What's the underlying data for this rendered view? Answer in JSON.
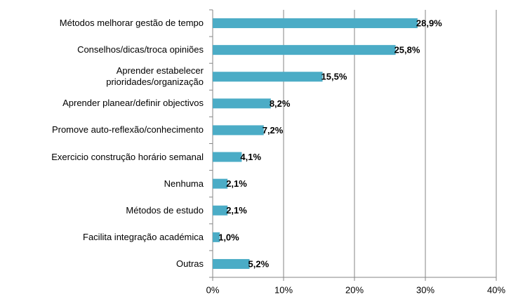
{
  "chart_data": {
    "type": "bar",
    "orientation": "horizontal",
    "categories": [
      "Métodos melhorar gestão de tempo",
      "Conselhos/dicas/troca opiniões",
      "Aprender estabelecer \nprioridades/organização",
      "Aprender planear/definir objectivos",
      "Promove auto-reflexão/conhecimento",
      "Exercicio construção horário semanal",
      "Nenhuma",
      "Métodos de estudo",
      "Facilita integração académica",
      "Outras"
    ],
    "values": [
      28.9,
      25.8,
      15.5,
      8.2,
      7.2,
      4.1,
      2.1,
      2.1,
      1.0,
      5.2
    ],
    "value_labels": [
      "28,9%",
      "25,8%",
      "15,5%",
      "8,2%",
      "7,2%",
      "4,1%",
      "2,1%",
      "2,1%",
      "1,0%",
      "5,2%"
    ],
    "color": "#4bacc6",
    "xlim": [
      0,
      40
    ],
    "xticks": [
      {
        "value": 0,
        "label": "0%"
      },
      {
        "value": 10,
        "label": "10%"
      },
      {
        "value": 20,
        "label": "20%"
      },
      {
        "value": 30,
        "label": "30%"
      },
      {
        "value": 40,
        "label": "40%"
      }
    ],
    "grid": true
  }
}
